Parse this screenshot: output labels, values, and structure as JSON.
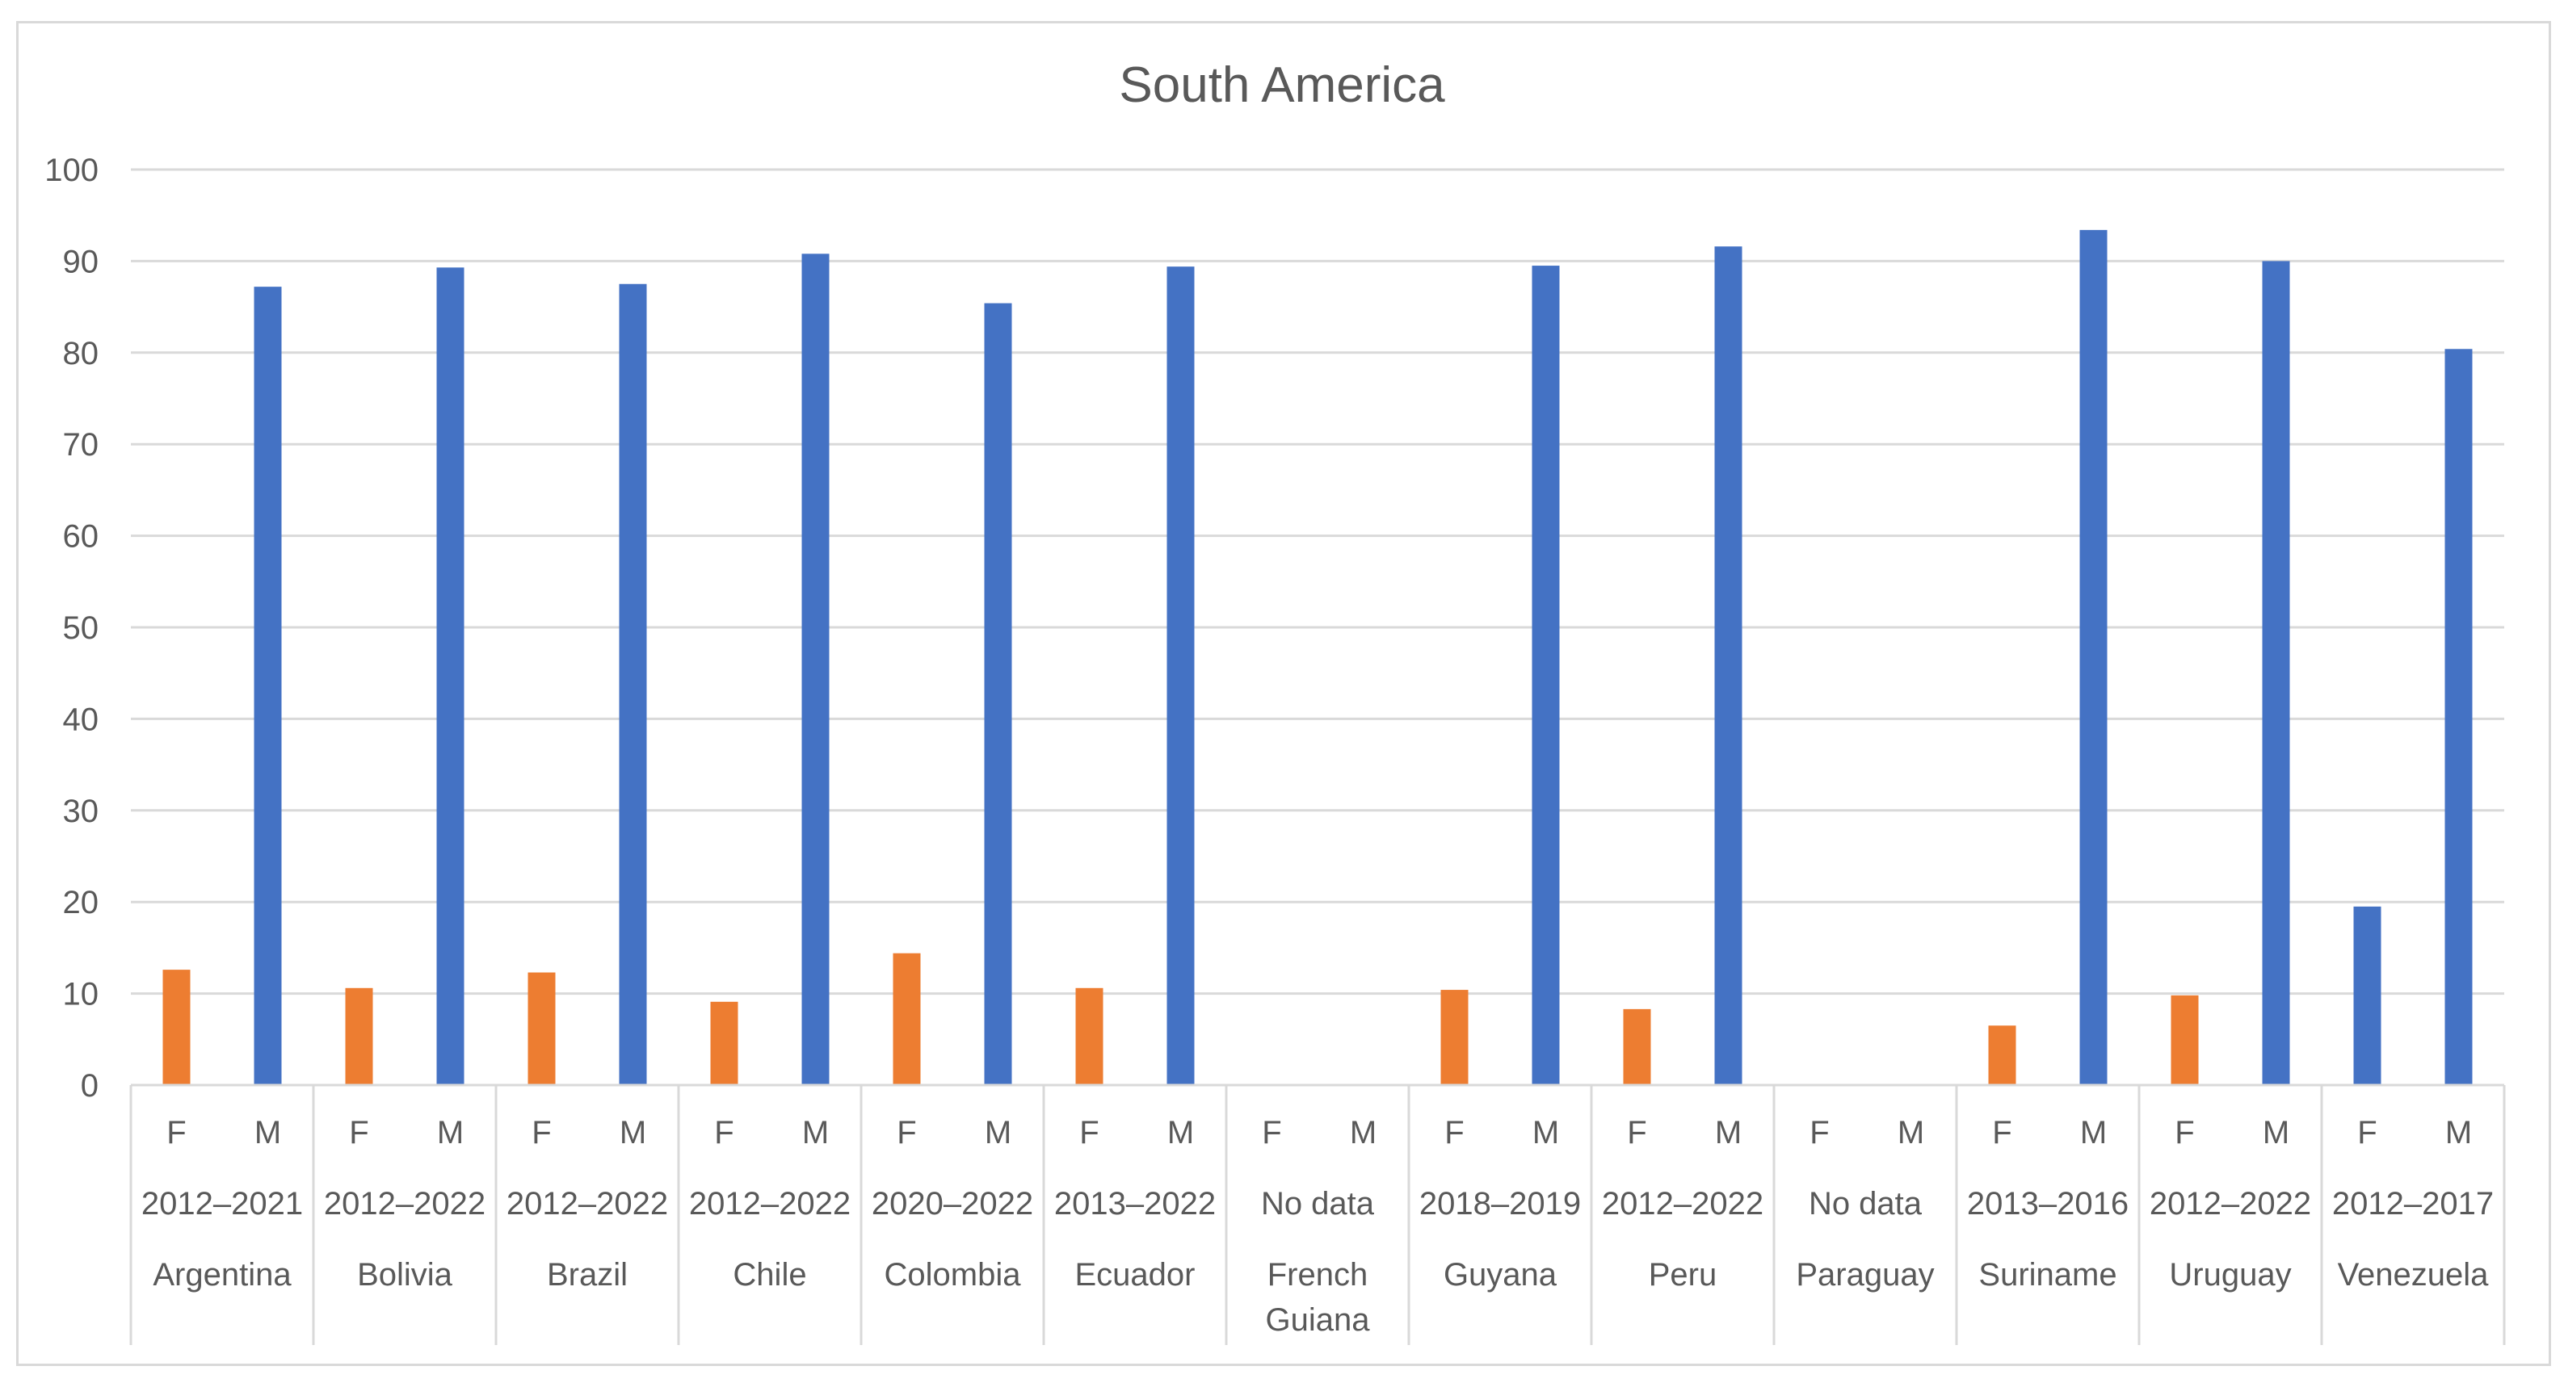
{
  "chart_data": {
    "type": "bar",
    "title": "South America",
    "xlabel": "",
    "ylabel": "",
    "ylim": [
      0,
      100
    ],
    "yticks": [
      0,
      10,
      20,
      30,
      40,
      50,
      60,
      70,
      80,
      90,
      100
    ],
    "grid": true,
    "legend": "none",
    "colors": {
      "F": "#ED7D31",
      "M": "#4472C4"
    },
    "groups": [
      {
        "country": [
          "Argentina"
        ],
        "period": "2012–2021",
        "bars": [
          {
            "label": "F",
            "value": 12.6,
            "color": "F"
          },
          {
            "label": "M",
            "value": 87.2,
            "color": "M"
          }
        ]
      },
      {
        "country": [
          "Bolivia"
        ],
        "period": "2012–2022",
        "bars": [
          {
            "label": "F",
            "value": 10.6,
            "color": "F"
          },
          {
            "label": "M",
            "value": 89.3,
            "color": "M"
          }
        ]
      },
      {
        "country": [
          "Brazil"
        ],
        "period": "2012–2022",
        "bars": [
          {
            "label": "F",
            "value": 12.3,
            "color": "F"
          },
          {
            "label": "M",
            "value": 87.5,
            "color": "M"
          }
        ]
      },
      {
        "country": [
          "Chile"
        ],
        "period": "2012–2022",
        "bars": [
          {
            "label": "F",
            "value": 9.1,
            "color": "F"
          },
          {
            "label": "M",
            "value": 90.8,
            "color": "M"
          }
        ]
      },
      {
        "country": [
          "Colombia"
        ],
        "period": "2020–2022",
        "bars": [
          {
            "label": "F",
            "value": 14.4,
            "color": "F"
          },
          {
            "label": "M",
            "value": 85.4,
            "color": "M"
          }
        ]
      },
      {
        "country": [
          "Ecuador"
        ],
        "period": "2013–2022",
        "bars": [
          {
            "label": "F",
            "value": 10.6,
            "color": "F"
          },
          {
            "label": "M",
            "value": 89.4,
            "color": "M"
          }
        ]
      },
      {
        "country": [
          "French",
          "Guiana"
        ],
        "period": "No data",
        "bars": [
          {
            "label": "F",
            "value": null,
            "color": "F"
          },
          {
            "label": "M",
            "value": null,
            "color": "M"
          }
        ]
      },
      {
        "country": [
          "Guyana"
        ],
        "period": "2018–2019",
        "bars": [
          {
            "label": "F",
            "value": 10.4,
            "color": "F"
          },
          {
            "label": "M",
            "value": 89.5,
            "color": "M"
          }
        ]
      },
      {
        "country": [
          "Peru"
        ],
        "period": "2012–2022",
        "bars": [
          {
            "label": "F",
            "value": 8.3,
            "color": "F"
          },
          {
            "label": "M",
            "value": 91.6,
            "color": "M"
          }
        ]
      },
      {
        "country": [
          "Paraguay"
        ],
        "period": "No data",
        "bars": [
          {
            "label": "F",
            "value": null,
            "color": "F"
          },
          {
            "label": "M",
            "value": null,
            "color": "M"
          }
        ]
      },
      {
        "country": [
          "Suriname"
        ],
        "period": "2013–2016",
        "bars": [
          {
            "label": "F",
            "value": 6.5,
            "color": "F"
          },
          {
            "label": "M",
            "value": 93.4,
            "color": "M"
          }
        ]
      },
      {
        "country": [
          "Uruguay"
        ],
        "period": "2012–2022",
        "bars": [
          {
            "label": "F",
            "value": 9.8,
            "color": "F"
          },
          {
            "label": "M",
            "value": 90.0,
            "color": "M"
          }
        ]
      },
      {
        "country": [
          "Venezuela"
        ],
        "period": "2012–2017",
        "bars": [
          {
            "label": "F",
            "value": 19.5,
            "color": "M"
          },
          {
            "label": "M",
            "value": 80.4,
            "color": "M"
          }
        ]
      }
    ]
  }
}
